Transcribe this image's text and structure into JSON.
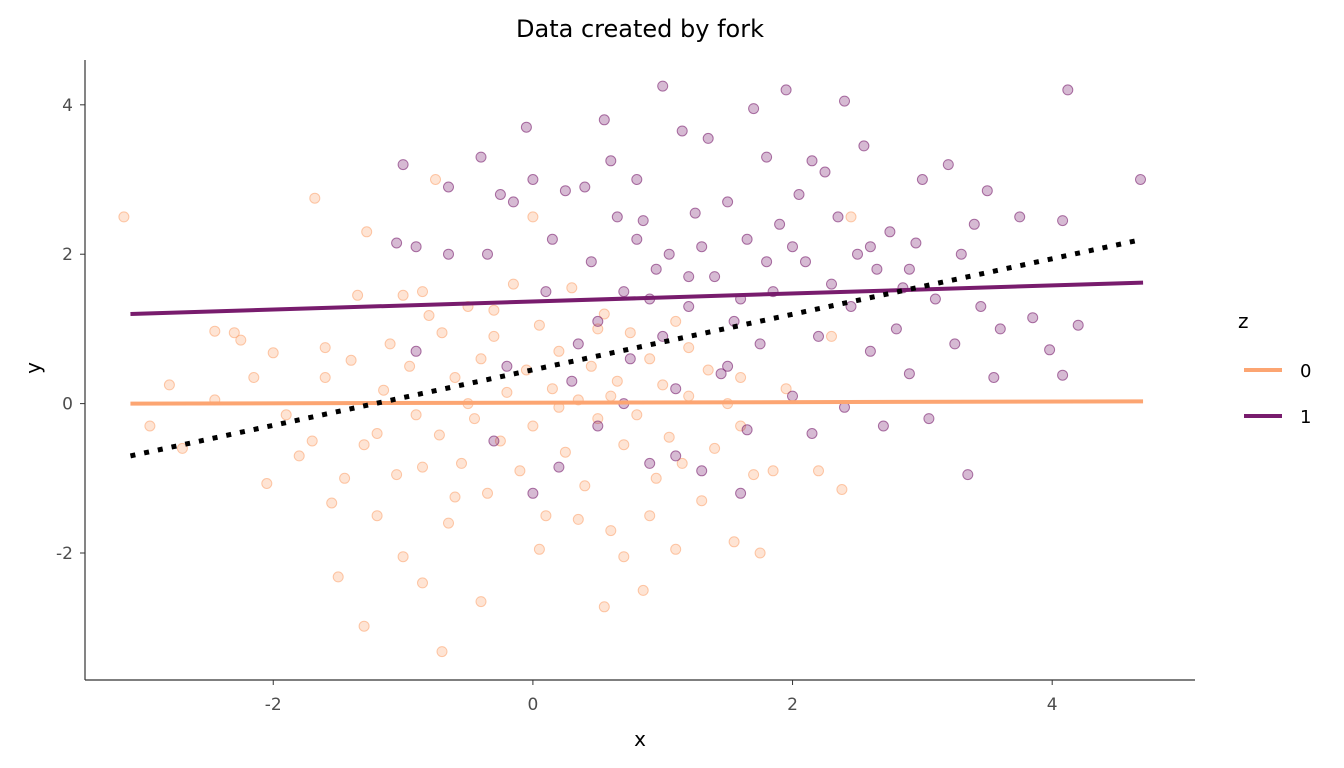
{
  "chart_data": {
    "type": "scatter",
    "title": "Data created by fork",
    "xlabel": "x",
    "ylabel": "y",
    "xlim": [
      -3.45,
      5.1
    ],
    "ylim": [
      -3.7,
      4.6
    ],
    "xticks": [
      -2,
      0,
      2,
      4
    ],
    "yticks": [
      -2,
      0,
      2,
      4
    ],
    "xtick_labels": [
      "-2",
      "0",
      "2",
      "4"
    ],
    "ytick_labels": [
      "-2",
      "0",
      "2",
      "4"
    ],
    "grid": false,
    "legend": {
      "title": "z",
      "position": "right",
      "entries": [
        "0",
        "1"
      ]
    },
    "colors": {
      "0": "#FCA572",
      "1": "#781C6D",
      "overall": "#000000"
    },
    "point_alpha": 0.3,
    "series": [
      {
        "name": "0",
        "color": "#FCA572",
        "fit_line": {
          "x": [
            -3.1,
            4.7
          ],
          "y": [
            0.0,
            0.03
          ]
        },
        "points": [
          [
            -3.15,
            2.5
          ],
          [
            -2.95,
            -0.3
          ],
          [
            -2.8,
            0.25
          ],
          [
            -2.7,
            -0.6
          ],
          [
            -2.45,
            0.05
          ],
          [
            -2.45,
            0.97
          ],
          [
            -2.3,
            0.95
          ],
          [
            -2.25,
            0.85
          ],
          [
            -2.05,
            -1.07
          ],
          [
            -2.0,
            0.68
          ],
          [
            -1.9,
            -0.15
          ],
          [
            -1.8,
            -0.7
          ],
          [
            -1.7,
            -0.5
          ],
          [
            -1.68,
            2.75
          ],
          [
            -1.6,
            0.75
          ],
          [
            -1.55,
            -1.33
          ],
          [
            -1.45,
            -1.0
          ],
          [
            -1.4,
            0.58
          ],
          [
            -1.3,
            -0.55
          ],
          [
            -1.28,
            2.3
          ],
          [
            -1.2,
            -0.4
          ],
          [
            -1.15,
            0.18
          ],
          [
            -1.05,
            -0.95
          ],
          [
            -1.0,
            1.45
          ],
          [
            -0.95,
            0.5
          ],
          [
            -0.9,
            -0.15
          ],
          [
            -0.85,
            -0.85
          ],
          [
            -0.8,
            1.18
          ],
          [
            -0.75,
            3.0
          ],
          [
            -0.72,
            -0.42
          ],
          [
            -0.7,
            0.95
          ],
          [
            -0.65,
            -1.6
          ],
          [
            -0.6,
            0.35
          ],
          [
            -0.55,
            -0.8
          ],
          [
            -0.5,
            1.3
          ],
          [
            -0.45,
            -0.2
          ],
          [
            -0.4,
            0.6
          ],
          [
            -0.35,
            -1.2
          ],
          [
            -0.3,
            0.9
          ],
          [
            -0.25,
            -0.5
          ],
          [
            -0.2,
            0.15
          ],
          [
            -0.15,
            1.6
          ],
          [
            -0.1,
            -0.9
          ],
          [
            -0.05,
            0.45
          ],
          [
            0.0,
            -0.3
          ],
          [
            0.05,
            1.05
          ],
          [
            0.1,
            -1.5
          ],
          [
            0.15,
            0.2
          ],
          [
            0.2,
            0.7
          ],
          [
            0.25,
            -0.65
          ],
          [
            0.3,
            1.55
          ],
          [
            0.35,
            0.05
          ],
          [
            0.4,
            -1.1
          ],
          [
            0.45,
            0.5
          ],
          [
            0.5,
            -0.2
          ],
          [
            0.55,
            1.2
          ],
          [
            0.6,
            -1.7
          ],
          [
            0.65,
            0.3
          ],
          [
            0.7,
            -0.55
          ],
          [
            0.75,
            0.95
          ],
          [
            0.8,
            -0.15
          ],
          [
            0.85,
            -2.5
          ],
          [
            0.9,
            0.6
          ],
          [
            0.95,
            -1.0
          ],
          [
            1.0,
            0.25
          ],
          [
            1.05,
            -0.45
          ],
          [
            1.1,
            1.1
          ],
          [
            1.15,
            -0.8
          ],
          [
            1.2,
            0.1
          ],
          [
            1.3,
            -1.3
          ],
          [
            1.35,
            0.45
          ],
          [
            1.4,
            -0.6
          ],
          [
            1.5,
            0.0
          ],
          [
            1.55,
            -1.85
          ],
          [
            1.6,
            0.35
          ],
          [
            1.7,
            -0.95
          ],
          [
            1.75,
            -2.0
          ],
          [
            1.85,
            -0.9
          ],
          [
            1.95,
            0.2
          ],
          [
            2.2,
            -0.9
          ],
          [
            2.3,
            0.9
          ],
          [
            2.38,
            -1.15
          ],
          [
            2.45,
            2.5
          ],
          [
            0.55,
            -2.72
          ],
          [
            -0.7,
            -3.32
          ],
          [
            -1.3,
            -2.98
          ],
          [
            -1.5,
            -2.32
          ],
          [
            -0.85,
            -2.4
          ],
          [
            -1.0,
            -2.05
          ],
          [
            -0.4,
            -2.65
          ],
          [
            0.7,
            -2.05
          ],
          [
            0.05,
            -1.95
          ],
          [
            1.1,
            -1.95
          ],
          [
            0.35,
            -1.55
          ],
          [
            -1.2,
            -1.5
          ],
          [
            -0.5,
            0.0
          ],
          [
            0.2,
            -0.05
          ],
          [
            0.6,
            0.1
          ],
          [
            -1.6,
            0.35
          ],
          [
            -2.15,
            0.35
          ],
          [
            -1.35,
            1.45
          ],
          [
            -0.85,
            1.5
          ],
          [
            -0.3,
            1.25
          ],
          [
            0.0,
            2.5
          ],
          [
            0.5,
            1.0
          ],
          [
            1.2,
            0.75
          ],
          [
            -1.1,
            0.8
          ],
          [
            -0.6,
            -1.25
          ],
          [
            0.9,
            -1.5
          ],
          [
            1.6,
            -0.3
          ]
        ]
      },
      {
        "name": "1",
        "color": "#781C6D",
        "fit_line": {
          "x": [
            -3.1,
            4.7
          ],
          "y": [
            1.2,
            1.62
          ]
        },
        "points": [
          [
            -1.0,
            3.2
          ],
          [
            -1.05,
            2.15
          ],
          [
            -0.9,
            2.1
          ],
          [
            -0.9,
            0.7
          ],
          [
            -0.65,
            2.9
          ],
          [
            -0.65,
            2.0
          ],
          [
            -0.4,
            3.3
          ],
          [
            -0.35,
            2.0
          ],
          [
            -0.25,
            2.8
          ],
          [
            -0.15,
            2.7
          ],
          [
            -0.05,
            3.7
          ],
          [
            0.0,
            3.0
          ],
          [
            -0.2,
            0.5
          ],
          [
            -0.3,
            -0.5
          ],
          [
            0.0,
            -1.2
          ],
          [
            0.1,
            1.5
          ],
          [
            0.15,
            2.2
          ],
          [
            0.2,
            -0.85
          ],
          [
            0.25,
            2.85
          ],
          [
            0.35,
            0.8
          ],
          [
            0.4,
            2.9
          ],
          [
            0.45,
            1.9
          ],
          [
            0.5,
            -0.3
          ],
          [
            0.55,
            3.8
          ],
          [
            0.6,
            3.25
          ],
          [
            0.65,
            2.5
          ],
          [
            0.7,
            1.5
          ],
          [
            0.75,
            0.6
          ],
          [
            0.8,
            3.0
          ],
          [
            0.85,
            2.45
          ],
          [
            0.9,
            -0.8
          ],
          [
            0.95,
            1.8
          ],
          [
            1.0,
            4.25
          ],
          [
            1.05,
            2.0
          ],
          [
            1.1,
            0.2
          ],
          [
            1.15,
            3.65
          ],
          [
            1.2,
            1.3
          ],
          [
            1.25,
            2.55
          ],
          [
            1.3,
            -0.9
          ],
          [
            1.35,
            3.55
          ],
          [
            1.4,
            1.7
          ],
          [
            1.45,
            0.4
          ],
          [
            1.5,
            2.7
          ],
          [
            1.55,
            1.1
          ],
          [
            1.6,
            -1.2
          ],
          [
            1.65,
            2.2
          ],
          [
            1.7,
            3.95
          ],
          [
            1.75,
            0.8
          ],
          [
            1.8,
            3.3
          ],
          [
            1.85,
            1.5
          ],
          [
            1.9,
            2.4
          ],
          [
            1.95,
            4.2
          ],
          [
            2.0,
            0.1
          ],
          [
            2.05,
            2.8
          ],
          [
            2.1,
            1.9
          ],
          [
            2.15,
            3.25
          ],
          [
            2.2,
            0.9
          ],
          [
            2.25,
            3.1
          ],
          [
            2.3,
            1.6
          ],
          [
            2.35,
            2.5
          ],
          [
            2.4,
            4.05
          ],
          [
            2.45,
            1.3
          ],
          [
            2.5,
            2.0
          ],
          [
            2.55,
            3.45
          ],
          [
            2.6,
            0.7
          ],
          [
            2.65,
            1.8
          ],
          [
            2.7,
            -0.3
          ],
          [
            2.75,
            2.3
          ],
          [
            2.8,
            1.0
          ],
          [
            2.85,
            1.55
          ],
          [
            2.9,
            0.4
          ],
          [
            2.95,
            2.15
          ],
          [
            3.0,
            3.0
          ],
          [
            3.05,
            -0.2
          ],
          [
            3.1,
            1.4
          ],
          [
            3.2,
            3.2
          ],
          [
            3.25,
            0.8
          ],
          [
            3.3,
            2.0
          ],
          [
            3.35,
            -0.95
          ],
          [
            3.4,
            2.4
          ],
          [
            3.45,
            1.3
          ],
          [
            3.5,
            2.85
          ],
          [
            3.55,
            0.35
          ],
          [
            3.6,
            1.0
          ],
          [
            3.75,
            2.5
          ],
          [
            3.85,
            1.15
          ],
          [
            3.98,
            0.72
          ],
          [
            4.08,
            2.45
          ],
          [
            4.08,
            0.38
          ],
          [
            4.12,
            4.2
          ],
          [
            4.2,
            1.05
          ],
          [
            4.68,
            3.0
          ],
          [
            2.4,
            -0.05
          ],
          [
            2.15,
            -0.4
          ],
          [
            1.65,
            -0.35
          ],
          [
            1.1,
            -0.7
          ],
          [
            0.7,
            0.0
          ],
          [
            0.3,
            0.3
          ],
          [
            0.5,
            1.1
          ],
          [
            1.0,
            0.9
          ],
          [
            1.5,
            0.5
          ],
          [
            2.0,
            2.1
          ],
          [
            1.3,
            2.1
          ],
          [
            0.9,
            1.4
          ],
          [
            1.8,
            1.9
          ],
          [
            1.2,
            1.7
          ],
          [
            2.6,
            2.1
          ],
          [
            0.8,
            2.2
          ],
          [
            1.6,
            1.4
          ],
          [
            2.9,
            1.8
          ]
        ]
      }
    ],
    "overall_fit": {
      "x": [
        -3.1,
        4.7
      ],
      "y": [
        -0.7,
        2.2
      ],
      "style": "dotted"
    }
  }
}
